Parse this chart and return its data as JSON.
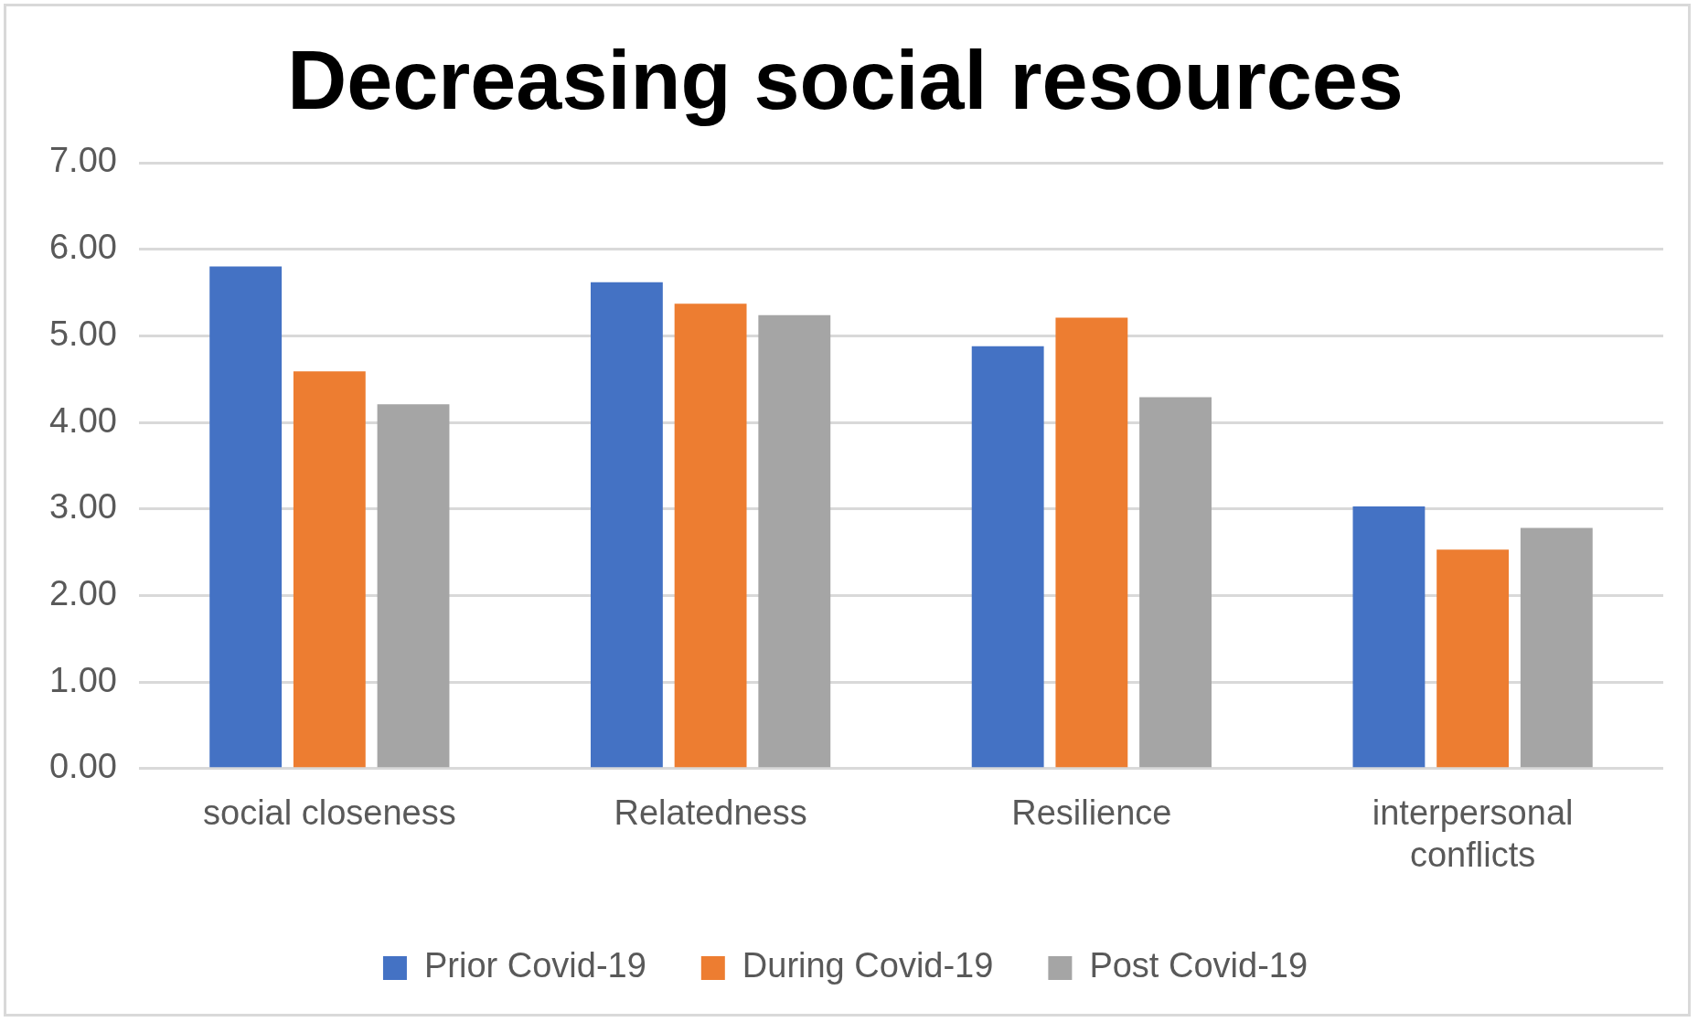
{
  "chart_data": {
    "type": "bar",
    "title": "Decreasing social resources",
    "categories": [
      "social closeness",
      "Relatedness",
      "Resilience",
      "interpersonal conflicts"
    ],
    "series": [
      {
        "name": "Prior Covid-19",
        "color": "#4472c4",
        "values": [
          5.8,
          5.62,
          4.88,
          3.03
        ]
      },
      {
        "name": "During Covid-19",
        "color": "#ed7d31",
        "values": [
          4.59,
          5.37,
          5.21,
          2.53
        ]
      },
      {
        "name": "Post Covid-19",
        "color": "#a5a5a5",
        "values": [
          4.21,
          5.24,
          4.29,
          2.78
        ]
      }
    ],
    "ylim": [
      0,
      7
    ],
    "yticks": [
      {
        "value": 0,
        "label": "0.00"
      },
      {
        "value": 1,
        "label": "1.00"
      },
      {
        "value": 2,
        "label": "2.00"
      },
      {
        "value": 3,
        "label": "3.00"
      },
      {
        "value": 4,
        "label": "4.00"
      },
      {
        "value": 5,
        "label": "5.00"
      },
      {
        "value": 6,
        "label": "6.00"
      },
      {
        "value": 7,
        "label": "7.00"
      }
    ],
    "grid": "y",
    "legend": "bottom"
  }
}
